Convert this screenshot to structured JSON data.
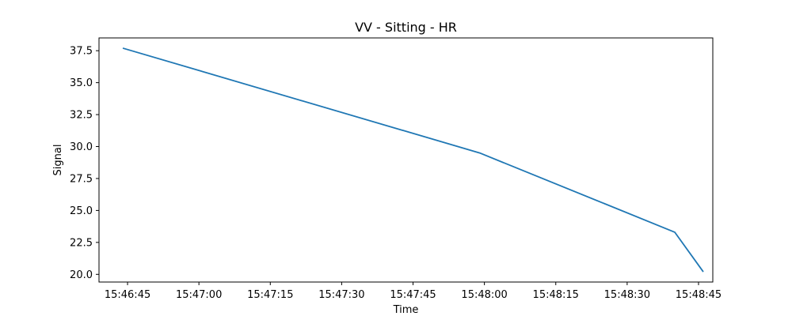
{
  "chart_data": {
    "type": "line",
    "title": "VV - Sitting - HR",
    "xlabel": "Time",
    "ylabel": "Signal",
    "x_ticks": [
      "15:46:45",
      "15:47:00",
      "15:47:15",
      "15:47:30",
      "15:47:45",
      "15:48:00",
      "15:48:15",
      "15:48:30",
      "15:48:45"
    ],
    "y_ticks": [
      "20.0",
      "22.5",
      "25.0",
      "27.5",
      "30.0",
      "32.5",
      "35.0",
      "37.5"
    ],
    "xlim": [
      "15:46:39",
      "15:48:48"
    ],
    "ylim": [
      19.4,
      38.5
    ],
    "grid": false,
    "series": [
      {
        "color": "#1f77b4",
        "x": [
          "15:46:44",
          "15:47:59",
          "15:48:40",
          "15:48:46"
        ],
        "y": [
          37.7,
          29.5,
          23.3,
          20.2
        ]
      }
    ]
  }
}
